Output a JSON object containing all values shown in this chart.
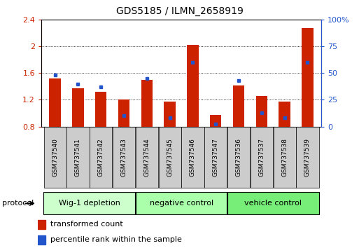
{
  "title": "GDS5185 / ILMN_2658919",
  "samples": [
    "GSM737540",
    "GSM737541",
    "GSM737542",
    "GSM737543",
    "GSM737544",
    "GSM737545",
    "GSM737546",
    "GSM737547",
    "GSM737536",
    "GSM737537",
    "GSM737538",
    "GSM737539"
  ],
  "red_values": [
    1.52,
    1.37,
    1.32,
    1.21,
    1.5,
    1.17,
    2.02,
    0.97,
    1.42,
    1.26,
    1.17,
    2.28
  ],
  "blue_values": [
    48,
    40,
    37,
    10,
    45,
    8,
    60,
    2,
    43,
    13,
    8,
    60
  ],
  "ylim_left": [
    0.8,
    2.4
  ],
  "ylim_right": [
    0,
    100
  ],
  "yticks_left": [
    0.8,
    1.2,
    1.6,
    2.0,
    2.4
  ],
  "yticks_right": [
    0,
    25,
    50,
    75,
    100
  ],
  "ytick_labels_right": [
    "0",
    "25",
    "50",
    "75",
    "100%"
  ],
  "bar_width": 0.5,
  "red_color": "#cc2200",
  "blue_color": "#2255cc",
  "baseline": 0.8,
  "groups": [
    {
      "label": "Wig-1 depletion",
      "start": 0,
      "end": 4,
      "color": "#ccffcc"
    },
    {
      "label": "negative control",
      "start": 4,
      "end": 8,
      "color": "#aaffaa"
    },
    {
      "label": "vehicle control",
      "start": 8,
      "end": 12,
      "color": "#77ee77"
    }
  ],
  "protocol_label": "protocol",
  "legend_red": "transformed count",
  "legend_blue": "percentile rank within the sample",
  "sample_box_color": "#cccccc",
  "group_border_color": "#333333"
}
